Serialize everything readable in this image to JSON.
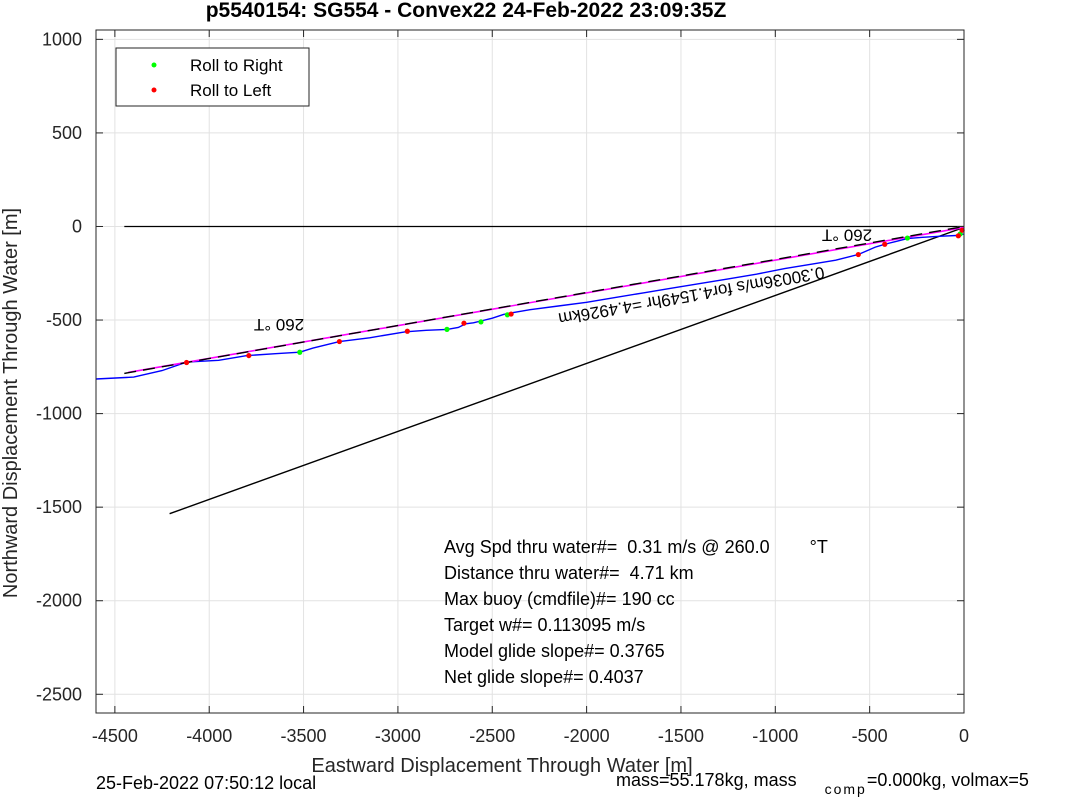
{
  "chart_data": {
    "type": "line",
    "title": "p5540154: SG554 - Convex22 24-Feb-2022 23:09:35Z",
    "xlabel": "Eastward Displacement Through Water [m]",
    "ylabel": "Northward Displacement Through Water [m]",
    "xlim": [
      -4600,
      0
    ],
    "ylim": [
      -2600,
      1050
    ],
    "xticks": [
      -4500,
      -4000,
      -3500,
      -3000,
      -2500,
      -2000,
      -1500,
      -1000,
      -500,
      0
    ],
    "yticks": [
      1000,
      500,
      0,
      -500,
      -1000,
      -1500,
      -2000,
      -2500
    ],
    "grid": true,
    "legend_position": "top-left",
    "legend": [
      {
        "label": "Roll to Right",
        "color": "#00ff00"
      },
      {
        "label": "Roll to Left",
        "color": "#ff0000"
      }
    ],
    "series": [
      {
        "kind": "track",
        "color": "#0000ff",
        "x": [
          -4600,
          -4400,
          -4250,
          -4120,
          -3950,
          -3800,
          -3650,
          -3520,
          -3450,
          -3310,
          -3150,
          -2960,
          -2850,
          -2740,
          -2680,
          -2640,
          -2600,
          -2560,
          -2500,
          -2440,
          -2400,
          -2300,
          -2150,
          -2000,
          -1850,
          -1700,
          -1550,
          -1400,
          -1250,
          -1100,
          -950,
          -800,
          -680,
          -560,
          -470,
          -420,
          -360,
          -300,
          -220,
          -120,
          -40,
          0
        ],
        "y": [
          -815,
          -805,
          -770,
          -725,
          -715,
          -690,
          -680,
          -672,
          -650,
          -615,
          -595,
          -563,
          -555,
          -550,
          -540,
          -520,
          -515,
          -505,
          -490,
          -470,
          -462,
          -445,
          -425,
          -405,
          -380,
          -355,
          -330,
          -305,
          -280,
          -255,
          -225,
          -200,
          -180,
          -150,
          -110,
          -95,
          -80,
          -65,
          -58,
          -52,
          -48,
          -40
        ]
      },
      {
        "kind": "average-course",
        "color": "#ff00ff",
        "x": [
          -4430,
          0
        ],
        "y": [
          -780,
          -5
        ]
      },
      {
        "kind": "heading-line",
        "color": "#000000",
        "x": [
          -4450,
          0
        ],
        "y": [
          -785,
          0
        ]
      },
      {
        "kind": "current-line",
        "color": "#000000",
        "x": [
          -4210,
          0
        ],
        "y": [
          -1535,
          -5
        ]
      },
      {
        "kind": "zero-line",
        "color": "#000000",
        "x": [
          -4450,
          0
        ],
        "y": [
          0,
          0
        ]
      }
    ],
    "roll_right": {
      "x": [
        -3520,
        -2740,
        -2560,
        -2420,
        -300,
        -20
      ],
      "y": [
        -672,
        -550,
        -510,
        -472,
        -62,
        -40
      ]
    },
    "roll_left": {
      "x": [
        -4120,
        -3790,
        -3310,
        -2950,
        -2650,
        -2400,
        -560,
        -420,
        -30,
        -10
      ],
      "y": [
        -727,
        -690,
        -615,
        -560,
        -517,
        -468,
        -150,
        -95,
        -50,
        -20
      ]
    },
    "annotations": [
      {
        "text": "260 °T",
        "x": -3630,
        "y": -495,
        "rotate": 180
      },
      {
        "text": "260 °T",
        "x": -620,
        "y": -15,
        "rotate": 180
      },
      {
        "text": "0.30036m/s for4.1549hr =4.4926km",
        "x": -1450,
        "y": -340,
        "rotate": 170
      }
    ],
    "stats": [
      "Avg Spd thru water#=  0.31 m/s @ 260.0        °T",
      "Distance thru water#=  4.71 km",
      "Max buoy (cmdfile)#= 190 cc",
      "Target w#= 0.113095 m/s",
      "Model glide slope#= 0.3765",
      "Net glide slope#= 0.4037"
    ],
    "footer_left": "25-Feb-2022 07:50:12 local",
    "footer_right_a": "mass=55.178kg, mass",
    "footer_right_sub": "comp",
    "footer_right_b": "=0.000kg, volmax=5"
  }
}
